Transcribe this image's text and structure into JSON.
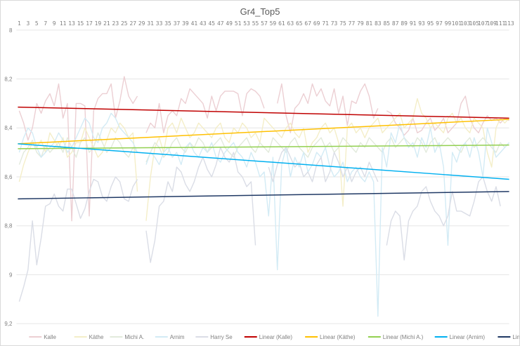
{
  "chart_data": {
    "type": "line",
    "title": "Gr4_Top5",
    "xlabel": "",
    "ylabel": "",
    "ylim": [
      8,
      9.2
    ],
    "y_reversed": true,
    "y_ticks": [
      "8",
      "8,2",
      "8,4",
      "8,6",
      "8,8",
      "9",
      "9,2"
    ],
    "y_tick_values": [
      8,
      8.2,
      8.4,
      8.6,
      8.8,
      9,
      9.2
    ],
    "x_count": 113,
    "x_label_step": 2,
    "grid": true,
    "legend_position": "bottom",
    "series": [
      {
        "name": "Kalle",
        "color": "#eccfd3",
        "values": [
          8.33,
          8.38,
          8.45,
          8.4,
          8.3,
          8.34,
          8.29,
          8.26,
          8.31,
          8.22,
          8.36,
          8.3,
          8.78,
          8.3,
          8.3,
          8.31,
          8.76,
          8.33,
          8.28,
          8.26,
          8.26,
          8.22,
          8.36,
          8.29,
          8.19,
          8.27,
          8.3,
          8.27,
          null,
          8.42,
          8.38,
          8.4,
          8.3,
          8.42,
          8.35,
          8.33,
          8.35,
          8.28,
          8.3,
          8.24,
          8.26,
          8.28,
          8.3,
          8.36,
          8.27,
          8.33,
          8.27,
          8.25,
          8.25,
          8.25,
          8.26,
          8.35,
          8.26,
          8.24,
          8.25,
          8.27,
          8.32,
          null,
          null,
          8.3,
          8.22,
          8.35,
          8.42,
          8.32,
          8.3,
          8.26,
          8.3,
          8.22,
          8.27,
          8.24,
          8.29,
          8.31,
          8.24,
          8.34,
          8.27,
          8.39,
          8.29,
          8.3,
          8.25,
          8.22,
          8.27,
          8.36,
          8.32,
          null,
          8.33,
          8.34,
          8.38,
          8.4,
          8.43,
          8.41,
          8.36,
          8.42,
          8.41,
          8.38,
          8.36,
          8.41,
          8.39,
          8.36,
          8.42,
          8.4,
          8.38,
          8.3,
          8.27,
          8.36,
          8.4,
          8.42,
          8.38,
          8.35,
          8.37,
          8.36,
          8.38,
          8.36,
          8.37
        ]
      },
      {
        "name": "Käthe",
        "color": "#f4eec8",
        "values": [
          8.62,
          8.55,
          8.5,
          8.46,
          8.48,
          8.45,
          8.5,
          8.42,
          8.45,
          8.48,
          8.44,
          8.52,
          8.5,
          8.46,
          8.46,
          8.4,
          8.44,
          8.48,
          8.52,
          8.5,
          8.45,
          8.4,
          8.42,
          8.38,
          8.4,
          8.44,
          8.42,
          8.66,
          null,
          8.78,
          8.6,
          8.48,
          8.44,
          8.5,
          8.4,
          8.38,
          8.42,
          8.36,
          8.4,
          8.44,
          8.42,
          8.38,
          8.4,
          8.42,
          8.44,
          8.4,
          8.38,
          8.44,
          8.46,
          8.4,
          8.42,
          8.38,
          8.4,
          8.44,
          8.42,
          8.46,
          8.36,
          8.38,
          8.4,
          8.42,
          8.44,
          8.4,
          8.38,
          8.42,
          8.44,
          8.4,
          8.5,
          8.46,
          8.44,
          8.4,
          8.38,
          8.42,
          8.4,
          8.46,
          8.72,
          8.4,
          8.38,
          8.42,
          8.4,
          8.44,
          8.4,
          8.38,
          8.36,
          8.42,
          8.4,
          8.38,
          8.36,
          8.34,
          8.4,
          8.38,
          8.36,
          8.28,
          8.34,
          8.36,
          8.4,
          8.38,
          8.4,
          8.42,
          8.36,
          8.34,
          8.38,
          8.36,
          8.4,
          8.42,
          8.36,
          8.38,
          8.4,
          8.5,
          8.56,
          8.4,
          8.36,
          8.38,
          8.36
        ]
      },
      {
        "name": "Michi A.",
        "color": "#e2eadc",
        "values": [
          8.55,
          8.5,
          8.48,
          8.45,
          8.5,
          8.52,
          8.47,
          8.5,
          8.48,
          8.46,
          8.5,
          8.44,
          8.48,
          8.52,
          8.46,
          8.44,
          8.5,
          8.48,
          8.42,
          8.46,
          8.5,
          8.48,
          8.44,
          8.46,
          8.5,
          8.52,
          8.48,
          8.5,
          null,
          8.54,
          8.5,
          8.46,
          8.48,
          8.52,
          8.5,
          8.46,
          8.44,
          8.48,
          8.5,
          8.46,
          8.48,
          8.44,
          8.46,
          8.5,
          8.48,
          8.46,
          8.44,
          8.48,
          8.5,
          8.52,
          8.48,
          8.46,
          8.44,
          8.48,
          8.5,
          8.46,
          8.48,
          8.5,
          8.44,
          8.46,
          8.48,
          8.5,
          8.46,
          8.44,
          8.48,
          8.5,
          8.52,
          8.48,
          8.46,
          8.44,
          8.48,
          8.46,
          8.5,
          8.48,
          8.44,
          8.46,
          8.48,
          8.5,
          8.46,
          8.48,
          8.44,
          8.46,
          8.48,
          8.5,
          8.46,
          8.44,
          8.48,
          8.46,
          8.44,
          8.46,
          8.48,
          8.44,
          8.46,
          8.5,
          8.46,
          8.44,
          8.48,
          8.46,
          8.44,
          8.46,
          8.48,
          8.5,
          8.46,
          8.44,
          8.48,
          8.46,
          8.44,
          8.46,
          8.48,
          8.5,
          8.46,
          8.48,
          8.46
        ]
      },
      {
        "name": "Arnim",
        "color": "#d3ebf5",
        "values": [
          8.5,
          8.44,
          8.4,
          8.42,
          8.48,
          8.52,
          8.5,
          8.48,
          8.46,
          8.42,
          8.45,
          8.5,
          8.48,
          8.44,
          8.4,
          8.36,
          8.38,
          8.44,
          8.46,
          8.4,
          8.38,
          8.34,
          8.36,
          8.4,
          8.42,
          8.44,
          8.46,
          8.5,
          null,
          8.55,
          8.5,
          8.52,
          8.55,
          8.5,
          8.48,
          8.52,
          8.5,
          8.55,
          8.48,
          8.46,
          8.5,
          8.52,
          8.48,
          8.5,
          8.46,
          8.52,
          8.54,
          8.5,
          8.48,
          8.46,
          8.5,
          8.52,
          8.56,
          8.5,
          8.54,
          8.6,
          8.58,
          8.76,
          8.52,
          8.98,
          8.55,
          8.48,
          8.6,
          8.52,
          8.56,
          8.5,
          8.58,
          8.55,
          8.5,
          8.52,
          8.48,
          8.56,
          8.6,
          8.58,
          8.54,
          8.62,
          8.58,
          8.56,
          8.6,
          8.62,
          8.58,
          8.62,
          9.17,
          8.48,
          8.56,
          8.42,
          8.46,
          8.38,
          8.44,
          8.48,
          8.46,
          8.52,
          8.44,
          8.48,
          8.4,
          8.5,
          8.46,
          8.56,
          8.88,
          8.5,
          8.54,
          8.48,
          8.46,
          8.52,
          8.44,
          8.5,
          8.6,
          8.4,
          8.46,
          8.52,
          8.5,
          8.48,
          8.46
        ]
      },
      {
        "name": "Harry Se",
        "color": "#dadde6",
        "values": [
          9.11,
          9.05,
          8.98,
          8.78,
          8.96,
          8.85,
          8.72,
          8.71,
          8.67,
          8.72,
          8.74,
          8.65,
          8.65,
          8.71,
          8.77,
          8.73,
          8.66,
          8.61,
          8.62,
          8.68,
          8.7,
          8.64,
          8.6,
          8.62,
          8.69,
          8.7,
          8.64,
          8.61,
          null,
          8.82,
          8.95,
          8.86,
          8.72,
          8.7,
          8.62,
          8.66,
          8.56,
          8.58,
          8.63,
          8.66,
          8.62,
          8.56,
          8.52,
          8.57,
          8.6,
          8.55,
          8.48,
          8.52,
          8.54,
          8.5,
          8.58,
          8.6,
          8.64,
          8.62,
          8.88,
          null,
          null,
          8.56,
          8.62,
          8.55,
          8.5,
          8.48,
          8.52,
          8.56,
          8.54,
          8.6,
          8.58,
          8.62,
          8.55,
          8.52,
          8.62,
          8.58,
          8.5,
          8.54,
          8.6,
          8.56,
          8.62,
          8.58,
          8.56,
          8.6,
          8.54,
          8.58,
          8.62,
          null,
          8.88,
          8.78,
          8.74,
          8.76,
          8.94,
          8.78,
          8.74,
          8.72,
          8.66,
          8.64,
          8.7,
          8.74,
          8.76,
          8.8,
          8.76,
          8.66,
          8.74,
          8.74,
          8.75,
          8.76,
          8.7,
          8.62,
          8.6,
          8.66,
          8.7,
          8.64,
          8.72,
          null,
          null
        ]
      }
    ],
    "trendlines": [
      {
        "name": "Linear (Kalle)",
        "color": "#c00000",
        "start": 8.315,
        "end": 8.36
      },
      {
        "name": "Linear (Käthe)",
        "color": "#ffc000",
        "start": 8.465,
        "end": 8.365
      },
      {
        "name": "Linear (Michi A.)",
        "color": "#92d050",
        "start": 8.485,
        "end": 8.47
      },
      {
        "name": "Linear (Arnim)",
        "color": "#00b0f0",
        "start": 8.465,
        "end": 8.61
      },
      {
        "name": "Linear (Harry Se)",
        "color": "#1f3864",
        "start": 8.69,
        "end": 8.66
      }
    ]
  }
}
